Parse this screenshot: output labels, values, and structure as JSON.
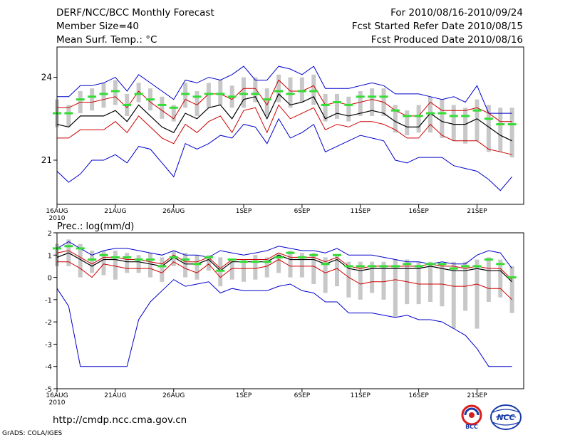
{
  "header": {
    "left": [
      "DERF/NCC/BCC Monthly Forecast",
      "Member Size=40",
      "Mean Surf. Temp.: °C"
    ],
    "right": [
      "For 2010/08/16-2010/09/24",
      "Fcst Started Refer Date 2010/08/15",
      "Fcst Produced Date 2010/08/16"
    ]
  },
  "footer": {
    "url": "http://cmdp.ncc.cma.gov.cn",
    "credit": "GrADS: COLA/IGES"
  },
  "logos": [
    {
      "name": "BCC",
      "label": "BCC",
      "colors": [
        "#d81e1e",
        "#1a3aa8"
      ]
    },
    {
      "name": "NCC",
      "label": "NCC",
      "colors": [
        "#1a3aa8"
      ]
    }
  ],
  "colors": {
    "box": "#c8c8c8",
    "median": "#33dd33",
    "mean": "#000000",
    "spread": "#cc0000",
    "envelope": "#0000cc",
    "frame": "#000000"
  },
  "chart_data": [
    {
      "name": "temperature",
      "type": "line",
      "title": "Mean Surf. Temp.: °C",
      "ylim": [
        19.4,
        25.1
      ],
      "yticks": [
        21,
        24
      ],
      "x_start_day": 16,
      "x_end_day": 56,
      "xticks": [
        {
          "day": 16,
          "label": "16AUG",
          "sub": "2010"
        },
        {
          "day": 21,
          "label": "21AUG"
        },
        {
          "day": 26,
          "label": "26AUG"
        },
        {
          "day": 32,
          "label": "1SEP"
        },
        {
          "day": 37,
          "label": "6SEP"
        },
        {
          "day": 42,
          "label": "11SEP"
        },
        {
          "day": 47,
          "label": "16SEP"
        },
        {
          "day": 52,
          "label": "21SEP"
        }
      ],
      "days": [
        16,
        17,
        18,
        19,
        20,
        21,
        22,
        23,
        24,
        25,
        26,
        27,
        28,
        29,
        30,
        31,
        32,
        33,
        34,
        35,
        36,
        37,
        38,
        39,
        40,
        41,
        42,
        43,
        44,
        45,
        46,
        47,
        48,
        49,
        50,
        51,
        52,
        53,
        54,
        55
      ],
      "series": [
        {
          "name": "max",
          "values": [
            23.3,
            23.3,
            23.7,
            23.7,
            23.8,
            24.0,
            23.5,
            24.1,
            23.8,
            23.5,
            23.2,
            23.9,
            23.8,
            24.0,
            23.9,
            24.1,
            24.4,
            23.9,
            23.9,
            24.4,
            24.3,
            24.1,
            24.4,
            23.6,
            23.6,
            23.6,
            23.7,
            23.8,
            23.7,
            23.4,
            23.4,
            23.4,
            23.3,
            23.2,
            23.3,
            23.1,
            23.7,
            22.7,
            22.7,
            22.7
          ]
        },
        {
          "name": "upper",
          "values": [
            22.9,
            22.9,
            23.1,
            23.1,
            23.2,
            23.3,
            22.9,
            23.5,
            23.1,
            22.8,
            22.5,
            23.2,
            23.0,
            23.4,
            23.4,
            23.2,
            23.6,
            23.6,
            23.0,
            23.9,
            23.5,
            23.5,
            23.7,
            23.0,
            23.1,
            23.0,
            23.1,
            23.2,
            23.1,
            22.8,
            22.6,
            22.6,
            23.1,
            22.8,
            22.8,
            22.8,
            22.9,
            22.7,
            22.4,
            22.4
          ]
        },
        {
          "name": "mean",
          "values": [
            22.3,
            22.2,
            22.6,
            22.6,
            22.6,
            22.8,
            22.4,
            23.0,
            22.6,
            22.2,
            22.0,
            22.7,
            22.5,
            22.9,
            23.0,
            22.5,
            23.2,
            23.3,
            22.5,
            23.4,
            23.0,
            23.1,
            23.3,
            22.5,
            22.7,
            22.6,
            22.7,
            22.8,
            22.7,
            22.4,
            22.2,
            22.2,
            22.7,
            22.4,
            22.3,
            22.3,
            22.5,
            22.2,
            21.9,
            21.7
          ]
        },
        {
          "name": "lower",
          "values": [
            21.8,
            21.8,
            22.1,
            22.1,
            22.1,
            22.4,
            22.0,
            22.6,
            22.2,
            21.8,
            21.6,
            22.3,
            22.0,
            22.4,
            22.6,
            22.0,
            22.8,
            22.9,
            22.0,
            23.0,
            22.5,
            22.7,
            22.9,
            22.1,
            22.3,
            22.2,
            22.4,
            22.4,
            22.3,
            22.1,
            21.8,
            21.8,
            22.3,
            21.9,
            21.7,
            21.7,
            21.7,
            21.4,
            21.3,
            21.2
          ]
        },
        {
          "name": "min",
          "values": [
            20.6,
            20.2,
            20.5,
            21.0,
            21.0,
            21.2,
            20.9,
            21.5,
            21.4,
            20.9,
            20.4,
            21.6,
            21.4,
            21.6,
            21.9,
            21.8,
            22.3,
            22.2,
            21.6,
            22.5,
            21.8,
            22.0,
            22.3,
            21.3,
            21.5,
            21.7,
            21.9,
            21.8,
            21.7,
            21.0,
            20.9,
            21.1,
            21.1,
            21.1,
            20.8,
            20.7,
            20.6,
            20.3,
            19.9,
            20.4
          ]
        },
        {
          "name": "median",
          "values": [
            22.7,
            22.7,
            23.2,
            23.3,
            23.4,
            23.5,
            23.0,
            23.4,
            23.2,
            23.0,
            22.9,
            23.4,
            23.3,
            23.4,
            23.4,
            23.3,
            23.4,
            23.4,
            23.2,
            23.5,
            23.4,
            23.5,
            23.5,
            23.0,
            23.1,
            23.0,
            23.3,
            23.3,
            23.3,
            22.8,
            22.6,
            22.6,
            22.7,
            22.7,
            22.6,
            22.6,
            22.8,
            22.5,
            22.3,
            22.3
          ]
        },
        {
          "name": "box_top",
          "values": [
            23.2,
            23.0,
            23.5,
            23.6,
            23.8,
            23.9,
            23.4,
            23.8,
            23.6,
            23.3,
            23.0,
            23.8,
            23.5,
            23.8,
            23.9,
            23.7,
            24.0,
            24.0,
            23.6,
            24.1,
            24.0,
            24.0,
            24.1,
            23.4,
            23.4,
            23.3,
            23.5,
            23.6,
            23.6,
            23.0,
            22.8,
            23.0,
            23.3,
            23.2,
            23.0,
            22.9,
            23.2,
            23.0,
            22.9,
            22.9
          ]
        },
        {
          "name": "box_bottom",
          "values": [
            22.2,
            22.2,
            22.7,
            22.8,
            22.9,
            23.0,
            22.6,
            23.1,
            22.8,
            22.5,
            22.4,
            22.9,
            22.6,
            22.9,
            23.0,
            22.9,
            22.9,
            23.1,
            22.6,
            23.1,
            22.9,
            23.1,
            23.0,
            22.4,
            22.5,
            22.4,
            22.6,
            22.6,
            22.6,
            22.0,
            21.9,
            22.0,
            22.0,
            21.8,
            21.7,
            21.6,
            21.7,
            21.3,
            21.3,
            21.1
          ]
        }
      ]
    },
    {
      "name": "precipitation",
      "type": "line",
      "title": "Prec.: log(mm/d)",
      "ylim": [
        -5,
        2
      ],
      "yticks": [
        -5,
        -4,
        -3,
        -2,
        -1,
        0,
        1,
        2
      ],
      "x_start_day": 16,
      "x_end_day": 56,
      "xticks": [
        {
          "day": 16,
          "label": "16AUG",
          "sub": "2010"
        },
        {
          "day": 21,
          "label": "21AUG"
        },
        {
          "day": 26,
          "label": "26AUG"
        },
        {
          "day": 32,
          "label": "1SEP"
        },
        {
          "day": 37,
          "label": "6SEP"
        },
        {
          "day": 42,
          "label": "11SEP"
        },
        {
          "day": 47,
          "label": "16SEP"
        },
        {
          "day": 52,
          "label": "21SEP"
        }
      ],
      "days": [
        16,
        17,
        18,
        19,
        20,
        21,
        22,
        23,
        24,
        25,
        26,
        27,
        28,
        29,
        30,
        31,
        32,
        33,
        34,
        35,
        36,
        37,
        38,
        39,
        40,
        41,
        42,
        43,
        44,
        45,
        46,
        47,
        48,
        49,
        50,
        51,
        52,
        53,
        54,
        55
      ],
      "series": [
        {
          "name": "max",
          "values": [
            1.3,
            1.6,
            1.3,
            1.0,
            1.2,
            1.3,
            1.3,
            1.2,
            1.1,
            1.0,
            1.2,
            1.0,
            1.0,
            0.9,
            1.2,
            1.1,
            1.0,
            1.1,
            1.2,
            1.4,
            1.3,
            1.2,
            1.2,
            1.1,
            1.3,
            1.0,
            1.0,
            1.0,
            0.9,
            0.8,
            0.7,
            0.7,
            0.6,
            0.7,
            0.6,
            0.6,
            1.0,
            1.2,
            1.1,
            0.4
          ]
        },
        {
          "name": "upper",
          "values": [
            1.1,
            1.2,
            0.9,
            0.6,
            0.9,
            0.9,
            0.8,
            0.8,
            0.7,
            0.6,
            1.0,
            0.7,
            0.7,
            0.9,
            0.4,
            0.8,
            0.8,
            0.8,
            0.8,
            1.1,
            0.9,
            0.9,
            0.9,
            0.7,
            0.9,
            0.5,
            0.4,
            0.5,
            0.5,
            0.5,
            0.5,
            0.5,
            0.6,
            0.5,
            0.5,
            0.4,
            0.5,
            0.4,
            0.4,
            -0.1
          ]
        },
        {
          "name": "mean",
          "values": [
            0.9,
            1.1,
            0.8,
            0.5,
            0.8,
            0.8,
            0.7,
            0.7,
            0.6,
            0.5,
            0.9,
            0.6,
            0.6,
            0.8,
            0.3,
            0.7,
            0.7,
            0.7,
            0.7,
            1.0,
            0.8,
            0.8,
            0.8,
            0.6,
            0.8,
            0.4,
            0.3,
            0.4,
            0.4,
            0.4,
            0.4,
            0.4,
            0.5,
            0.4,
            0.3,
            0.3,
            0.4,
            0.3,
            0.3,
            -0.2
          ]
        },
        {
          "name": "lower",
          "values": [
            0.7,
            0.7,
            0.4,
            0.0,
            0.6,
            0.5,
            0.4,
            0.4,
            0.4,
            0.2,
            0.7,
            0.4,
            0.2,
            0.6,
            0.0,
            0.4,
            0.4,
            0.4,
            0.5,
            0.8,
            0.5,
            0.5,
            0.5,
            0.2,
            0.4,
            0.0,
            -0.3,
            -0.2,
            -0.2,
            -0.1,
            -0.2,
            -0.3,
            -0.3,
            -0.3,
            -0.4,
            -0.4,
            -0.3,
            -0.5,
            -0.5,
            -1.0
          ]
        },
        {
          "name": "min",
          "values": [
            -0.5,
            -1.3,
            -4.0,
            -4.0,
            -4.0,
            -4.0,
            -4.0,
            -1.9,
            -1.1,
            -0.6,
            -0.1,
            -0.4,
            -0.3,
            -0.2,
            -0.7,
            -0.5,
            -0.6,
            -0.6,
            -0.6,
            -0.4,
            -0.3,
            -0.6,
            -0.7,
            -1.1,
            -1.1,
            -1.6,
            -1.6,
            -1.6,
            -1.7,
            -1.8,
            -1.7,
            -1.9,
            -1.9,
            -2.0,
            -2.3,
            -2.6,
            -3.2,
            -4.0,
            -4.0,
            -4.0
          ]
        },
        {
          "name": "median",
          "values": [
            1.3,
            1.4,
            1.3,
            0.8,
            1.0,
            0.9,
            0.9,
            0.8,
            0.8,
            0.5,
            0.9,
            0.8,
            0.6,
            0.9,
            0.3,
            0.8,
            0.7,
            0.7,
            0.7,
            0.9,
            1.1,
            0.9,
            1.0,
            0.6,
            1.0,
            0.5,
            0.5,
            0.5,
            0.5,
            0.5,
            0.6,
            0.5,
            0.6,
            0.6,
            0.4,
            0.5,
            0.5,
            0.8,
            0.6,
            0.0
          ]
        },
        {
          "name": "box_top",
          "values": [
            1.5,
            1.7,
            1.5,
            1.2,
            1.2,
            1.2,
            1.1,
            1.0,
            1.1,
            0.9,
            1.2,
            1.1,
            1.0,
            1.0,
            0.9,
            0.8,
            0.8,
            1.0,
            0.9,
            1.1,
            1.2,
            1.1,
            1.1,
            0.9,
            1.0,
            0.7,
            0.7,
            0.7,
            0.7,
            0.8,
            0.8,
            0.7,
            0.7,
            0.6,
            0.7,
            0.7,
            0.8,
            0.9,
            0.8,
            0.5
          ]
        },
        {
          "name": "box_bottom",
          "values": [
            0.5,
            0.5,
            0.0,
            0.2,
            0.1,
            -0.1,
            0.2,
            0.2,
            0.0,
            -0.2,
            0.5,
            0.0,
            -0.1,
            0.3,
            -0.4,
            -0.1,
            -0.2,
            -0.1,
            0.0,
            0.2,
            0.0,
            0.0,
            -0.3,
            -0.7,
            -0.4,
            -0.9,
            -1.0,
            -0.7,
            -1.0,
            -1.8,
            -1.2,
            -1.2,
            -1.1,
            -1.3,
            -2.3,
            -1.5,
            -2.3,
            -1.1,
            -0.9,
            -1.6
          ]
        }
      ]
    }
  ]
}
